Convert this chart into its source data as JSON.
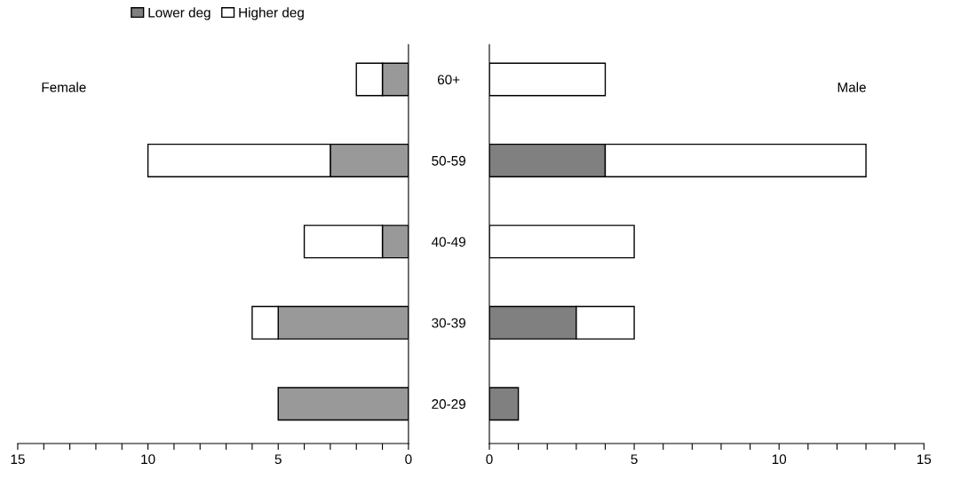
{
  "chart_data": [
    {
      "type": "bar",
      "orientation": "horizontal",
      "stacked": true,
      "categories": [
        null,
        null,
        null,
        null,
        null
      ],
      "series": [
        {
          "color": "#999999",
          "values": [
            1,
            3,
            1,
            5,
            5
          ]
        },
        {
          "color": "#ffffff",
          "values": [
            1,
            7,
            3,
            1,
            null
          ]
        }
      ],
      "xlim": [
        15,
        0
      ],
      "xticks": [
        15,
        {
          "value": 14,
          "label": null
        },
        {
          "value": 13,
          "label": null
        },
        {
          "value": 12,
          "label": null
        },
        {
          "value": 11,
          "label": null
        },
        10,
        {
          "value": 9,
          "label": null
        },
        {
          "value": 8,
          "label": null
        },
        {
          "value": 7,
          "label": null
        },
        {
          "value": 6,
          "label": null
        },
        5,
        {
          "value": 4,
          "label": null
        },
        {
          "value": 3,
          "label": null
        },
        {
          "value": 2,
          "label": null
        },
        {
          "value": 1,
          "label": null
        },
        0
      ],
      "tick_labels": "x",
      "annotations": [
        "Female"
      ]
    },
    {
      "type": "bar",
      "orientation": "horizontal",
      "stacked": true,
      "categories": [
        "60+",
        "50-59",
        "40-49",
        "30-39",
        "20-29"
      ],
      "series": [
        {
          "name": "Lower deg",
          "color": "#808080",
          "values": [
            null,
            4,
            null,
            3,
            1
          ]
        },
        {
          "name": "Higher deg",
          "color": "#ffffff",
          "values": [
            4,
            9,
            5,
            2,
            null
          ]
        }
      ],
      "xlim": [
        0,
        15
      ],
      "xticks": [
        0,
        {
          "value": 1,
          "label": null
        },
        {
          "value": 2,
          "label": null
        },
        {
          "value": 3,
          "label": null
        },
        {
          "value": 4,
          "label": null
        },
        5,
        {
          "value": 6,
          "label": null
        },
        {
          "value": 7,
          "label": null
        },
        {
          "value": 8,
          "label": null
        },
        {
          "value": 9,
          "label": null
        },
        10,
        {
          "value": 11,
          "label": null
        },
        {
          "value": 12,
          "label": null
        },
        {
          "value": 13,
          "label": null
        },
        {
          "value": 14,
          "label": null
        },
        15
      ],
      "legend": "top",
      "annotations": [
        "Male"
      ]
    }
  ]
}
